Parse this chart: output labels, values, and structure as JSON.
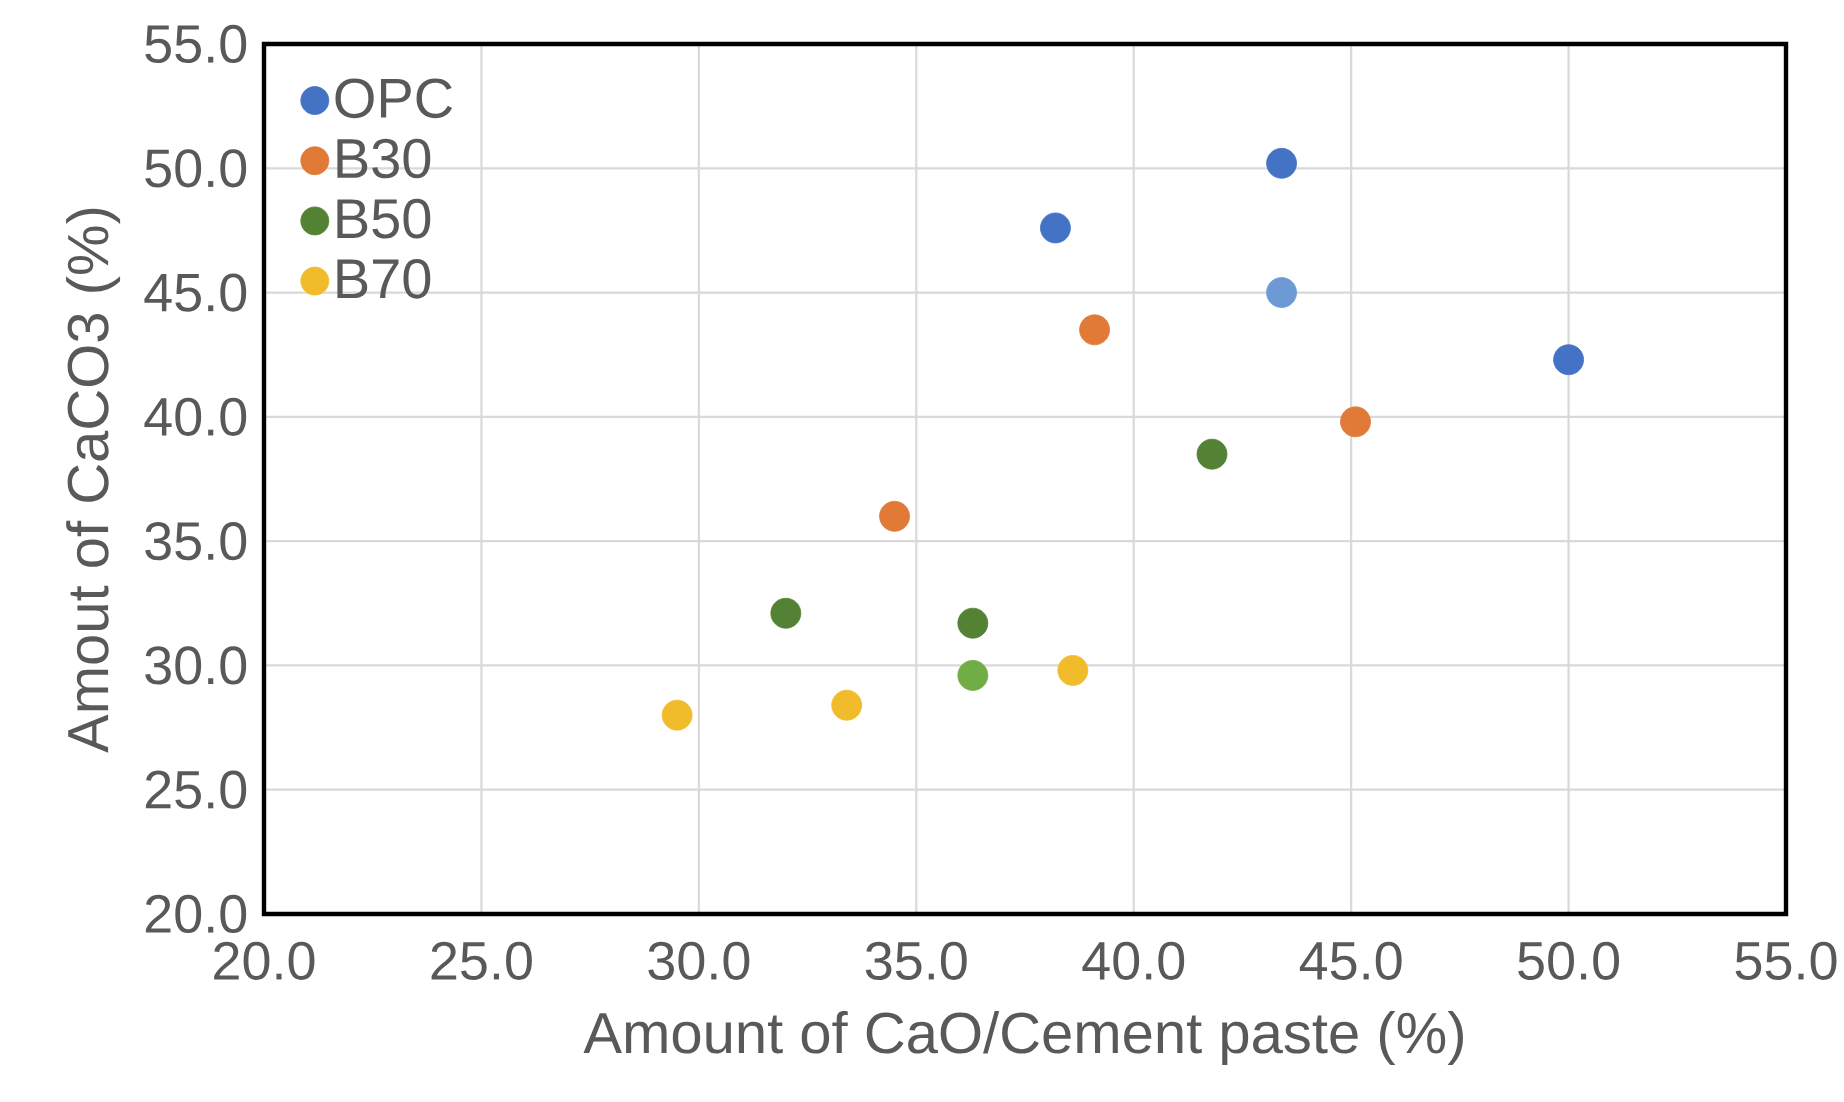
{
  "chart_data": {
    "type": "scatter",
    "xlabel": "Amount of CaO/Cement paste (%)",
    "ylabel": "Amout of CaCO3 (%)",
    "xlim": [
      20,
      55
    ],
    "ylim": [
      20,
      55
    ],
    "xticks": [
      {
        "value": 20,
        "label": "20.0"
      },
      {
        "value": 25,
        "label": "25.0"
      },
      {
        "value": 30,
        "label": "30.0"
      },
      {
        "value": 35,
        "label": "35.0"
      },
      {
        "value": 40,
        "label": "40.0"
      },
      {
        "value": 45,
        "label": "45.0"
      },
      {
        "value": 50,
        "label": "50.0"
      },
      {
        "value": 55,
        "label": "55.0"
      }
    ],
    "yticks": [
      {
        "value": 20,
        "label": "20.0"
      },
      {
        "value": 25,
        "label": "25.0"
      },
      {
        "value": 30,
        "label": "30.0"
      },
      {
        "value": 35,
        "label": "35.0"
      },
      {
        "value": 40,
        "label": "40.0"
      },
      {
        "value": 45,
        "label": "45.0"
      },
      {
        "value": 50,
        "label": "50.0"
      },
      {
        "value": 55,
        "label": "55.0"
      }
    ],
    "grid": true,
    "legend": "top left",
    "marker": "circle",
    "series": [
      {
        "name": "OPC",
        "color": "#4472c4",
        "colors": [
          "#4472c4",
          "#4472c4",
          "#6d9ad4",
          "#4472c4"
        ],
        "x": [
          38.2,
          43.4,
          43.4,
          50.0
        ],
        "values": [
          47.6,
          50.2,
          45.0,
          42.3
        ]
      },
      {
        "name": "B30",
        "color": "#e07a36",
        "x": [
          34.5,
          39.1,
          45.1
        ],
        "values": [
          36.0,
          43.5,
          39.8
        ]
      },
      {
        "name": "B50",
        "color": "#548235",
        "colors": [
          "#548235",
          "#548235",
          "#70ad47",
          "#548235"
        ],
        "x": [
          32.0,
          36.3,
          36.3,
          41.8
        ],
        "values": [
          32.1,
          31.7,
          29.6,
          38.5
        ]
      },
      {
        "name": "B70",
        "color": "#f0bc2c",
        "x": [
          29.5,
          33.4,
          38.6
        ],
        "values": [
          28.0,
          28.4,
          29.8
        ]
      }
    ]
  }
}
